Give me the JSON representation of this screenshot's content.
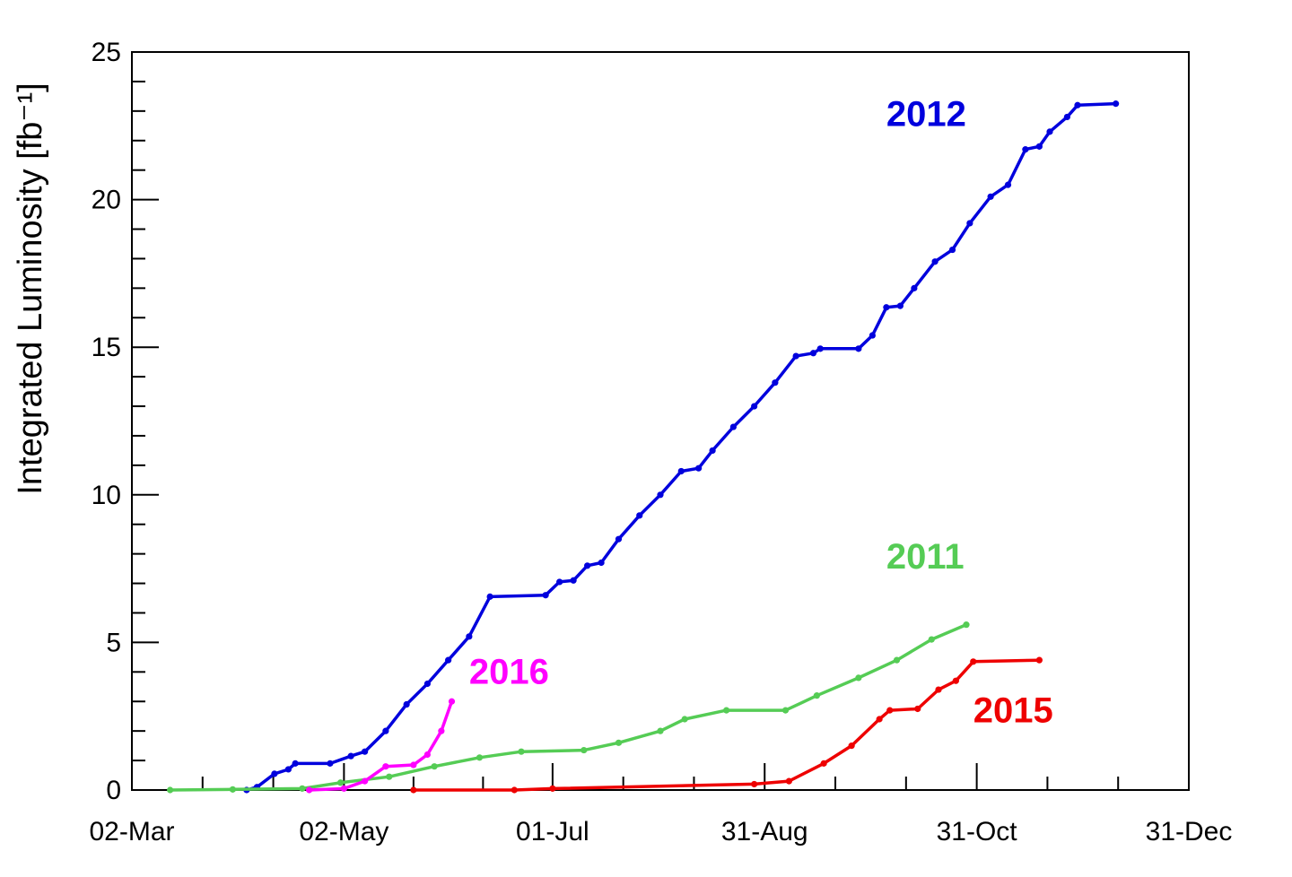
{
  "chart_data": {
    "type": "line",
    "title": "",
    "xlabel": "",
    "ylabel": "Integrated Luminosity [fb⁻¹]",
    "xlim": [
      "02-Mar",
      "31-Dec"
    ],
    "ylim": [
      0,
      25
    ],
    "x_ticks": [
      "02-Mar",
      "02-May",
      "01-Jul",
      "31-Aug",
      "31-Oct",
      "31-Dec"
    ],
    "y_ticks": [
      "0",
      "5",
      "10",
      "15",
      "20",
      "25"
    ],
    "grid": false,
    "series": [
      {
        "name": "2012",
        "color": "#0000dd",
        "points": [
          [
            "04-Apr",
            0
          ],
          [
            "07-Apr",
            0.1
          ],
          [
            "12-Apr",
            0.55
          ],
          [
            "16-Apr",
            0.7
          ],
          [
            "18-Apr",
            0.9
          ],
          [
            "28-Apr",
            0.9
          ],
          [
            "04-May",
            1.15
          ],
          [
            "08-May",
            1.3
          ],
          [
            "14-May",
            2.0
          ],
          [
            "20-May",
            2.9
          ],
          [
            "26-May",
            3.6
          ],
          [
            "01-Jun",
            4.4
          ],
          [
            "07-Jun",
            5.2
          ],
          [
            "13-Jun",
            6.55
          ],
          [
            "29-Jun",
            6.6
          ],
          [
            "03-Jul",
            7.05
          ],
          [
            "07-Jul",
            7.1
          ],
          [
            "11-Jul",
            7.6
          ],
          [
            "15-Jul",
            7.7
          ],
          [
            "20-Jul",
            8.5
          ],
          [
            "26-Jul",
            9.3
          ],
          [
            "01-Aug",
            10.0
          ],
          [
            "07-Aug",
            10.8
          ],
          [
            "12-Aug",
            10.9
          ],
          [
            "16-Aug",
            11.5
          ],
          [
            "22-Aug",
            12.3
          ],
          [
            "28-Aug",
            13.0
          ],
          [
            "03-Sep",
            13.8
          ],
          [
            "09-Sep",
            14.7
          ],
          [
            "14-Sep",
            14.8
          ],
          [
            "16-Sep",
            14.95
          ],
          [
            "27-Sep",
            14.95
          ],
          [
            "01-Oct",
            15.4
          ],
          [
            "05-Oct",
            16.35
          ],
          [
            "09-Oct",
            16.4
          ],
          [
            "13-Oct",
            17.0
          ],
          [
            "19-Oct",
            17.9
          ],
          [
            "24-Oct",
            18.3
          ],
          [
            "29-Oct",
            19.2
          ],
          [
            "04-Nov",
            20.1
          ],
          [
            "09-Nov",
            20.5
          ],
          [
            "14-Nov",
            21.7
          ],
          [
            "18-Nov",
            21.8
          ],
          [
            "21-Nov",
            22.3
          ],
          [
            "26-Nov",
            22.8
          ],
          [
            "29-Nov",
            23.2
          ],
          [
            "10-Dec",
            23.25
          ]
        ]
      },
      {
        "name": "2011",
        "color": "#55cc55",
        "points": [
          [
            "13-Mar",
            0
          ],
          [
            "31-Mar",
            0.02
          ],
          [
            "20-Apr",
            0.05
          ],
          [
            "01-May",
            0.25
          ],
          [
            "15-May",
            0.45
          ],
          [
            "28-May",
            0.8
          ],
          [
            "10-Jun",
            1.1
          ],
          [
            "22-Jun",
            1.3
          ],
          [
            "10-Jul",
            1.35
          ],
          [
            "20-Jul",
            1.6
          ],
          [
            "01-Aug",
            2.0
          ],
          [
            "08-Aug",
            2.4
          ],
          [
            "20-Aug",
            2.7
          ],
          [
            "06-Sep",
            2.7
          ],
          [
            "15-Sep",
            3.2
          ],
          [
            "27-Sep",
            3.8
          ],
          [
            "08-Oct",
            4.4
          ],
          [
            "18-Oct",
            5.1
          ],
          [
            "28-Oct",
            5.6
          ]
        ]
      },
      {
        "name": "2016",
        "color": "#ff00ff",
        "points": [
          [
            "22-Apr",
            0
          ],
          [
            "02-May",
            0.05
          ],
          [
            "08-May",
            0.3
          ],
          [
            "14-May",
            0.8
          ],
          [
            "22-May",
            0.85
          ],
          [
            "26-May",
            1.2
          ],
          [
            "30-May",
            2.0
          ],
          [
            "02-Jun",
            3.0
          ]
        ]
      },
      {
        "name": "2015",
        "color": "#ee0000",
        "points": [
          [
            "22-May",
            0
          ],
          [
            "20-Jun",
            0
          ],
          [
            "01-Jul",
            0.05
          ],
          [
            "28-Aug",
            0.2
          ],
          [
            "07-Sep",
            0.3
          ],
          [
            "17-Sep",
            0.9
          ],
          [
            "25-Sep",
            1.5
          ],
          [
            "03-Oct",
            2.4
          ],
          [
            "06-Oct",
            2.7
          ],
          [
            "14-Oct",
            2.75
          ],
          [
            "20-Oct",
            3.4
          ],
          [
            "25-Oct",
            3.7
          ],
          [
            "30-Oct",
            4.35
          ],
          [
            "18-Nov",
            4.4
          ]
        ]
      }
    ],
    "annotations": [
      {
        "text": "2012",
        "x": "05-Oct",
        "y": 22.5,
        "color": "#0000dd"
      },
      {
        "text": "2011",
        "x": "05-Oct",
        "y": 7.5,
        "color": "#55cc55"
      },
      {
        "text": "2016",
        "x": "07-Jun",
        "y": 3.6,
        "color": "#ff00ff"
      },
      {
        "text": "2015",
        "x": "30-Oct",
        "y": 2.3,
        "color": "#ee0000"
      }
    ]
  }
}
